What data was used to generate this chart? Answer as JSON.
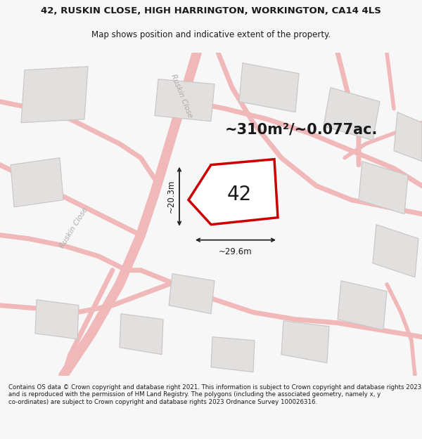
{
  "title_line1": "42, RUSKIN CLOSE, HIGH HARRINGTON, WORKINGTON, CA14 4LS",
  "title_line2": "Map shows position and indicative extent of the property.",
  "area_text": "~310m²/~0.077ac.",
  "label_42": "42",
  "dim_width": "~29.6m",
  "dim_height": "~20.3m",
  "street_label_left": "Ruskin Close",
  "street_label_top": "Ruskin Close",
  "footer_text": "Contains OS data © Crown copyright and database right 2021. This information is subject to Crown copyright and database rights 2023 and is reproduced with the permission of HM Land Registry. The polygons (including the associated geometry, namely x, y co-ordinates) are subject to Crown copyright and database rights 2023 Ordnance Survey 100026316.",
  "bg_color": "#f7f7f7",
  "map_bg": "#f0eeee",
  "building_fill": "#e2dfdf",
  "building_edge": "#ccc8c8",
  "road_color": "#f0b8b8",
  "plot_outline_color": "#cc0000",
  "dim_line_color": "#222222",
  "text_color": "#1a1a1a",
  "street_text_color": "#b0aaaa",
  "title_fontsize": 9.5,
  "subtitle_fontsize": 8.5,
  "area_fontsize": 15,
  "label_fontsize": 20,
  "footer_fontsize": 6.2
}
